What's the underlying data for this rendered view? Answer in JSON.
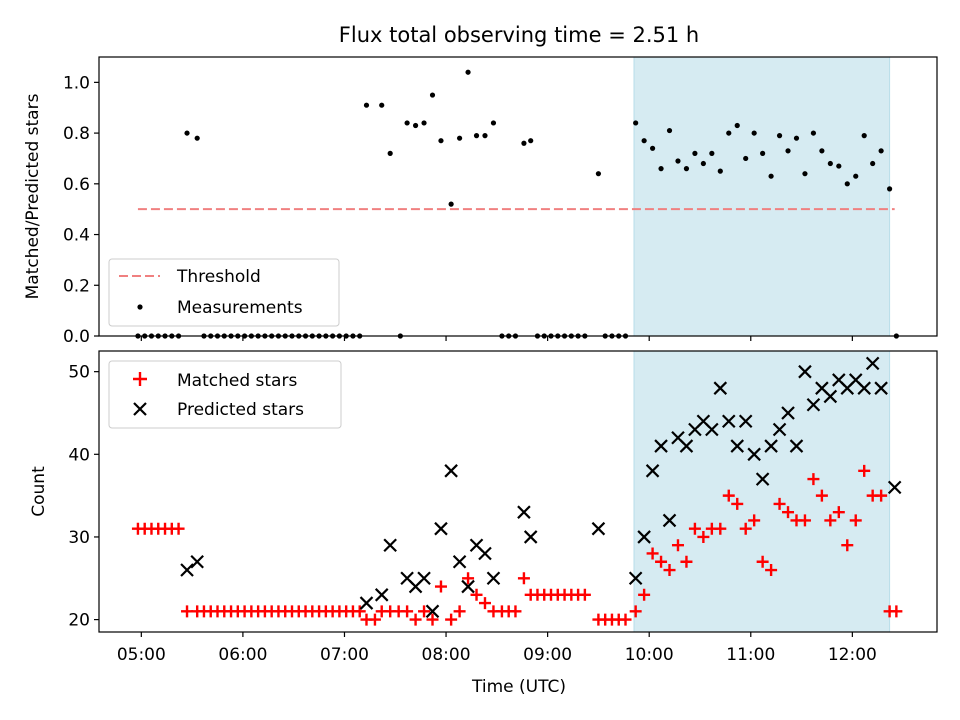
{
  "chart_data": [
    {
      "type": "scatter",
      "title": "Flux total observing time = 2.51 h",
      "xlabel": "",
      "ylabel": "Matched/Predicted stars",
      "xlim": [
        "04:35",
        "12:50"
      ],
      "ylim": [
        0,
        1.1
      ],
      "yticks": [
        "0.0",
        "0.2",
        "0.4",
        "0.6",
        "0.8",
        "1.0"
      ],
      "grid": false,
      "legend": "lower-left",
      "shaded_region": {
        "x": [
          "09:51",
          "12:22"
        ],
        "color": "#add8e6"
      },
      "threshold": {
        "name": "Threshold",
        "value": 0.5,
        "x": [
          "04:58",
          "12:25"
        ],
        "color": "#f08080"
      },
      "series": [
        {
          "name": "Measurements",
          "color": "#000000",
          "points": [
            [
              "04:58",
              0
            ],
            [
              "05:02",
              0
            ],
            [
              "05:06",
              0
            ],
            [
              "05:10",
              0
            ],
            [
              "05:14",
              0
            ],
            [
              "05:18",
              0
            ],
            [
              "05:22",
              0
            ],
            [
              "05:27",
              0.8
            ],
            [
              "05:33",
              0.78
            ],
            [
              "05:37",
              0
            ],
            [
              "05:41",
              0
            ],
            [
              "05:45",
              0
            ],
            [
              "05:49",
              0
            ],
            [
              "05:53",
              0
            ],
            [
              "05:57",
              0
            ],
            [
              "06:01",
              0
            ],
            [
              "06:05",
              0
            ],
            [
              "06:09",
              0
            ],
            [
              "06:13",
              0
            ],
            [
              "06:17",
              0
            ],
            [
              "06:21",
              0
            ],
            [
              "06:25",
              0
            ],
            [
              "06:29",
              0
            ],
            [
              "06:33",
              0
            ],
            [
              "06:37",
              0
            ],
            [
              "06:41",
              0
            ],
            [
              "06:45",
              0
            ],
            [
              "06:49",
              0
            ],
            [
              "06:53",
              0
            ],
            [
              "06:57",
              0
            ],
            [
              "07:01",
              0
            ],
            [
              "07:05",
              0
            ],
            [
              "07:09",
              0
            ],
            [
              "07:13",
              0.91
            ],
            [
              "07:22",
              0.91
            ],
            [
              "07:27",
              0.72
            ],
            [
              "07:33",
              0
            ],
            [
              "07:37",
              0.84
            ],
            [
              "07:42",
              0.83
            ],
            [
              "07:47",
              0.84
            ],
            [
              "07:52",
              0.95
            ],
            [
              "07:57",
              0.77
            ],
            [
              "08:03",
              0.52
            ],
            [
              "08:08",
              0.78
            ],
            [
              "08:13",
              1.04
            ],
            [
              "08:18",
              0.79
            ],
            [
              "08:23",
              0.79
            ],
            [
              "08:28",
              0.84
            ],
            [
              "08:33",
              0
            ],
            [
              "08:37",
              0
            ],
            [
              "08:41",
              0
            ],
            [
              "08:46",
              0.76
            ],
            [
              "08:50",
              0.77
            ],
            [
              "08:54",
              0
            ],
            [
              "08:58",
              0
            ],
            [
              "09:02",
              0
            ],
            [
              "09:06",
              0
            ],
            [
              "09:10",
              0
            ],
            [
              "09:14",
              0
            ],
            [
              "09:18",
              0
            ],
            [
              "09:22",
              0
            ],
            [
              "09:30",
              0.64
            ],
            [
              "09:34",
              0
            ],
            [
              "09:38",
              0
            ],
            [
              "09:42",
              0
            ],
            [
              "09:46",
              0
            ],
            [
              "09:52",
              0.84
            ],
            [
              "09:57",
              0.77
            ],
            [
              "10:02",
              0.74
            ],
            [
              "10:07",
              0.66
            ],
            [
              "10:12",
              0.81
            ],
            [
              "10:17",
              0.69
            ],
            [
              "10:22",
              0.66
            ],
            [
              "10:27",
              0.72
            ],
            [
              "10:32",
              0.68
            ],
            [
              "10:37",
              0.72
            ],
            [
              "10:42",
              0.65
            ],
            [
              "10:47",
              0.8
            ],
            [
              "10:52",
              0.83
            ],
            [
              "10:57",
              0.7
            ],
            [
              "11:02",
              0.8
            ],
            [
              "11:07",
              0.72
            ],
            [
              "11:12",
              0.63
            ],
            [
              "11:17",
              0.79
            ],
            [
              "11:22",
              0.73
            ],
            [
              "11:27",
              0.78
            ],
            [
              "11:32",
              0.64
            ],
            [
              "11:37",
              0.8
            ],
            [
              "11:42",
              0.73
            ],
            [
              "11:47",
              0.68
            ],
            [
              "11:52",
              0.67
            ],
            [
              "11:57",
              0.6
            ],
            [
              "12:02",
              0.63
            ],
            [
              "12:07",
              0.79
            ],
            [
              "12:12",
              0.68
            ],
            [
              "12:17",
              0.73
            ],
            [
              "12:22",
              0.58
            ],
            [
              "12:26",
              0
            ]
          ]
        }
      ]
    },
    {
      "type": "scatter",
      "title": "",
      "xlabel": "Time (UTC)",
      "ylabel": "Count",
      "xlim": [
        "04:35",
        "12:50"
      ],
      "xticks": [
        "05:00",
        "06:00",
        "07:00",
        "08:00",
        "09:00",
        "10:00",
        "11:00",
        "12:00"
      ],
      "ylim": [
        18.5,
        52.5
      ],
      "yticks": [
        "20",
        "30",
        "40",
        "50"
      ],
      "grid": false,
      "legend": "upper-left",
      "shaded_region": {
        "x": [
          "09:51",
          "12:22"
        ],
        "color": "#add8e6"
      },
      "series": [
        {
          "name": "Matched stars",
          "marker": "+",
          "color": "#ff0000",
          "points": [
            [
              "04:58",
              31
            ],
            [
              "05:02",
              31
            ],
            [
              "05:06",
              31
            ],
            [
              "05:10",
              31
            ],
            [
              "05:14",
              31
            ],
            [
              "05:18",
              31
            ],
            [
              "05:22",
              31
            ],
            [
              "05:27",
              21
            ],
            [
              "05:33",
              21
            ],
            [
              "05:37",
              21
            ],
            [
              "05:41",
              21
            ],
            [
              "05:45",
              21
            ],
            [
              "05:49",
              21
            ],
            [
              "05:53",
              21
            ],
            [
              "05:57",
              21
            ],
            [
              "06:01",
              21
            ],
            [
              "06:05",
              21
            ],
            [
              "06:09",
              21
            ],
            [
              "06:13",
              21
            ],
            [
              "06:17",
              21
            ],
            [
              "06:21",
              21
            ],
            [
              "06:25",
              21
            ],
            [
              "06:29",
              21
            ],
            [
              "06:33",
              21
            ],
            [
              "06:37",
              21
            ],
            [
              "06:41",
              21
            ],
            [
              "06:45",
              21
            ],
            [
              "06:49",
              21
            ],
            [
              "06:53",
              21
            ],
            [
              "06:57",
              21
            ],
            [
              "07:01",
              21
            ],
            [
              "07:05",
              21
            ],
            [
              "07:09",
              21
            ],
            [
              "07:13",
              20
            ],
            [
              "07:18",
              20
            ],
            [
              "07:22",
              21
            ],
            [
              "07:27",
              21
            ],
            [
              "07:32",
              21
            ],
            [
              "07:37",
              21
            ],
            [
              "07:42",
              20
            ],
            [
              "07:47",
              21
            ],
            [
              "07:52",
              20
            ],
            [
              "07:57",
              24
            ],
            [
              "08:03",
              20
            ],
            [
              "08:08",
              21
            ],
            [
              "08:13",
              25
            ],
            [
              "08:18",
              23
            ],
            [
              "08:23",
              22
            ],
            [
              "08:28",
              21
            ],
            [
              "08:33",
              21
            ],
            [
              "08:37",
              21
            ],
            [
              "08:41",
              21
            ],
            [
              "08:46",
              25
            ],
            [
              "08:50",
              23
            ],
            [
              "08:54",
              23
            ],
            [
              "08:58",
              23
            ],
            [
              "09:02",
              23
            ],
            [
              "09:06",
              23
            ],
            [
              "09:10",
              23
            ],
            [
              "09:14",
              23
            ],
            [
              "09:18",
              23
            ],
            [
              "09:22",
              23
            ],
            [
              "09:30",
              20
            ],
            [
              "09:34",
              20
            ],
            [
              "09:38",
              20
            ],
            [
              "09:42",
              20
            ],
            [
              "09:46",
              20
            ],
            [
              "09:52",
              21
            ],
            [
              "09:57",
              23
            ],
            [
              "10:02",
              28
            ],
            [
              "10:07",
              27
            ],
            [
              "10:12",
              26
            ],
            [
              "10:17",
              29
            ],
            [
              "10:22",
              27
            ],
            [
              "10:27",
              31
            ],
            [
              "10:32",
              30
            ],
            [
              "10:37",
              31
            ],
            [
              "10:42",
              31
            ],
            [
              "10:47",
              35
            ],
            [
              "10:52",
              34
            ],
            [
              "10:57",
              31
            ],
            [
              "11:02",
              32
            ],
            [
              "11:07",
              27
            ],
            [
              "11:12",
              26
            ],
            [
              "11:17",
              34
            ],
            [
              "11:22",
              33
            ],
            [
              "11:27",
              32
            ],
            [
              "11:32",
              32
            ],
            [
              "11:37",
              37
            ],
            [
              "11:42",
              35
            ],
            [
              "11:47",
              32
            ],
            [
              "11:52",
              33
            ],
            [
              "11:57",
              29
            ],
            [
              "12:02",
              32
            ],
            [
              "12:07",
              38
            ],
            [
              "12:12",
              35
            ],
            [
              "12:17",
              35
            ],
            [
              "12:22",
              21
            ],
            [
              "12:26",
              21
            ]
          ]
        },
        {
          "name": "Predicted stars",
          "marker": "x",
          "color": "#000000",
          "points": [
            [
              "05:27",
              26
            ],
            [
              "05:33",
              27
            ],
            [
              "07:13",
              22
            ],
            [
              "07:22",
              23
            ],
            [
              "07:27",
              29
            ],
            [
              "07:37",
              25
            ],
            [
              "07:42",
              24
            ],
            [
              "07:47",
              25
            ],
            [
              "07:52",
              21
            ],
            [
              "07:57",
              31
            ],
            [
              "08:03",
              38
            ],
            [
              "08:08",
              27
            ],
            [
              "08:13",
              24
            ],
            [
              "08:18",
              29
            ],
            [
              "08:23",
              28
            ],
            [
              "08:28",
              25
            ],
            [
              "08:46",
              33
            ],
            [
              "08:50",
              30
            ],
            [
              "09:30",
              31
            ],
            [
              "09:52",
              25
            ],
            [
              "09:57",
              30
            ],
            [
              "10:02",
              38
            ],
            [
              "10:07",
              41
            ],
            [
              "10:12",
              32
            ],
            [
              "10:17",
              42
            ],
            [
              "10:22",
              41
            ],
            [
              "10:27",
              43
            ],
            [
              "10:32",
              44
            ],
            [
              "10:37",
              43
            ],
            [
              "10:42",
              48
            ],
            [
              "10:47",
              44
            ],
            [
              "10:52",
              41
            ],
            [
              "10:57",
              44
            ],
            [
              "11:02",
              40
            ],
            [
              "11:07",
              37
            ],
            [
              "11:12",
              41
            ],
            [
              "11:17",
              43
            ],
            [
              "11:22",
              45
            ],
            [
              "11:27",
              41
            ],
            [
              "11:32",
              50
            ],
            [
              "11:37",
              46
            ],
            [
              "11:42",
              48
            ],
            [
              "11:47",
              47
            ],
            [
              "11:52",
              49
            ],
            [
              "11:57",
              48
            ],
            [
              "12:02",
              49
            ],
            [
              "12:07",
              48
            ],
            [
              "12:12",
              51
            ],
            [
              "12:17",
              48
            ],
            [
              "12:25",
              36
            ]
          ]
        }
      ]
    }
  ]
}
